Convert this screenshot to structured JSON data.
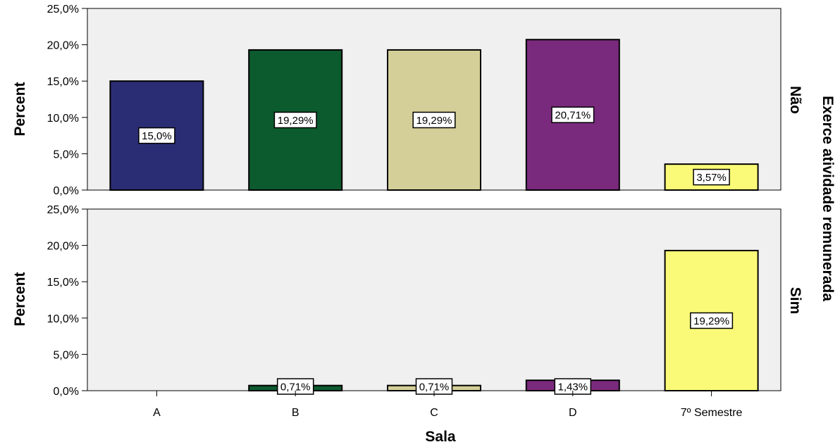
{
  "chart_data": {
    "type": "bar",
    "xlabel": "Sala",
    "ylabel": "Percent",
    "facet_title": "Exerce atividade remunerada",
    "categories": [
      "A",
      "B",
      "C",
      "D",
      "7º Semestre"
    ],
    "colors": [
      "#2b2d74",
      "#0c5b2f",
      "#d4cf98",
      "#7a2a7d",
      "#fafa78"
    ],
    "ylim": [
      0,
      25
    ],
    "yticks": [
      "0,0%",
      "5,0%",
      "10,0%",
      "15,0%",
      "20,0%",
      "25,0%"
    ],
    "grid": false,
    "panels": [
      {
        "name": "Não",
        "values": [
          15.0,
          19.29,
          19.29,
          20.71,
          3.57
        ],
        "labels": [
          "15,0%",
          "19,29%",
          "19,29%",
          "20,71%",
          "3,57%"
        ]
      },
      {
        "name": "Sim",
        "values": [
          0,
          0.71,
          0.71,
          1.43,
          19.29
        ],
        "labels": [
          "",
          "0,71%",
          "0,71%",
          "1,43%",
          "19,29%"
        ]
      }
    ]
  }
}
